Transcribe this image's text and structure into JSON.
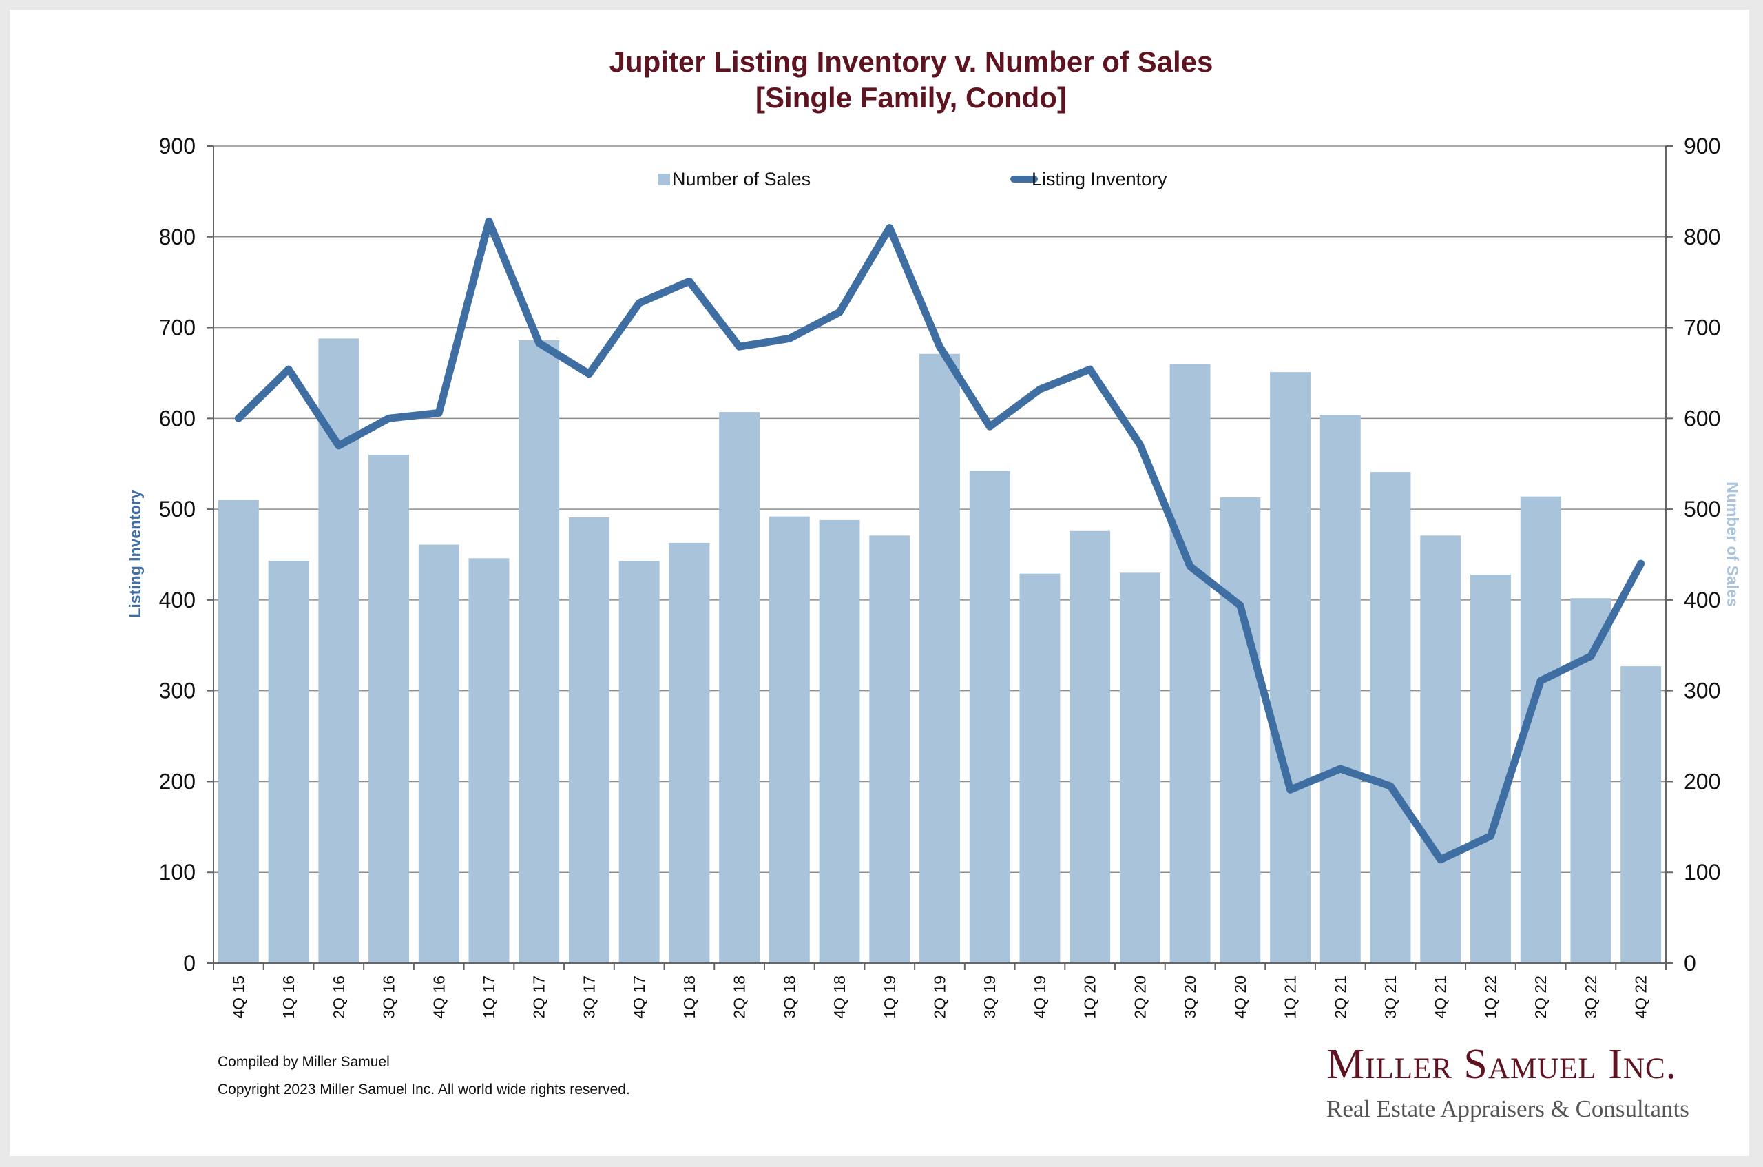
{
  "chart_data": {
    "type": "bar+line",
    "title": "Jupiter Listing Inventory v. Number of Sales",
    "subtitle": "[Single Family, Condo]",
    "categories": [
      "4Q 15",
      "1Q 16",
      "2Q 16",
      "3Q 16",
      "4Q 16",
      "1Q 17",
      "2Q 17",
      "3Q 17",
      "4Q 17",
      "1Q 18",
      "2Q 18",
      "3Q 18",
      "4Q 18",
      "1Q 19",
      "2Q 19",
      "3Q 19",
      "4Q 19",
      "1Q 20",
      "2Q 20",
      "3Q 20",
      "4Q 20",
      "1Q 21",
      "2Q 21",
      "3Q 21",
      "4Q 21",
      "1Q 22",
      "2Q 22",
      "3Q 22",
      "4Q 22"
    ],
    "series": [
      {
        "name": "Number of Sales",
        "type": "bar",
        "axis": "right",
        "color": "#a9c4da",
        "values": [
          510,
          443,
          688,
          560,
          461,
          446,
          686,
          491,
          443,
          463,
          607,
          492,
          488,
          471,
          671,
          542,
          429,
          476,
          430,
          660,
          513,
          651,
          604,
          541,
          471,
          428,
          514,
          402,
          327
        ]
      },
      {
        "name": "Listing Inventory",
        "type": "line",
        "axis": "left",
        "color": "#3f6ea3",
        "values": [
          600,
          654,
          570,
          600,
          606,
          817,
          683,
          649,
          727,
          751,
          679,
          688,
          717,
          810,
          679,
          591,
          632,
          654,
          571,
          437,
          394,
          191,
          214,
          195,
          114,
          140,
          311,
          338,
          440
        ]
      }
    ],
    "ylabel_left": "Listing Inventory",
    "ylabel_right": "Number of Sales",
    "ylim": [
      0,
      900
    ],
    "yticks": [
      "0",
      "100",
      "200",
      "300",
      "400",
      "500",
      "600",
      "700",
      "800",
      "900"
    ],
    "grid": true,
    "legend": "top-center"
  },
  "footer": {
    "compiled": "Compiled by Miller Samuel",
    "copyright": "Copyright 2023 Miller Samuel Inc.  All world wide rights reserved."
  },
  "logo": {
    "name": "Miller Samuel Inc.",
    "tagline": "Real Estate Appraisers & Consultants"
  }
}
